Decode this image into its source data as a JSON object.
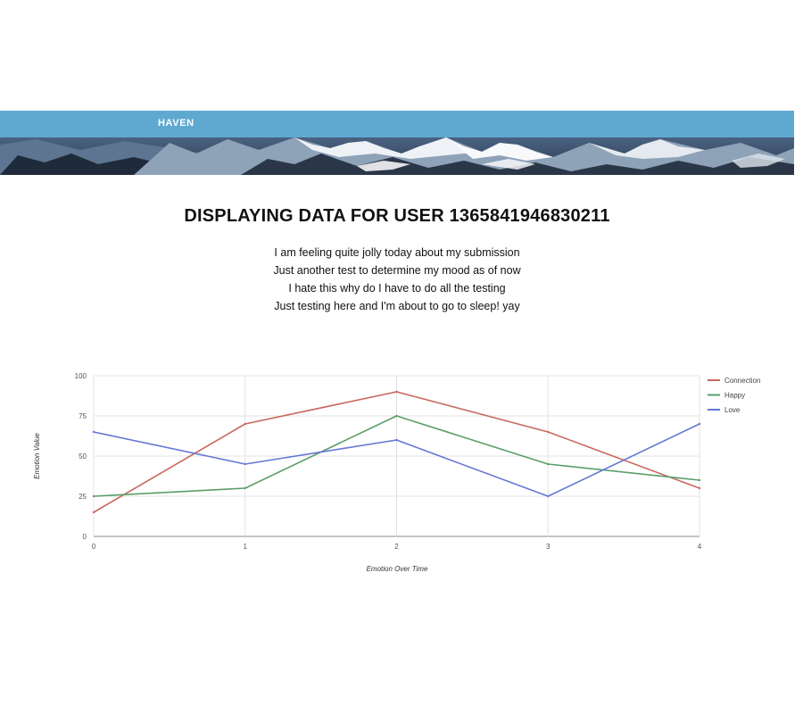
{
  "nav": {
    "brand": "HAVEN"
  },
  "main": {
    "title": "DISPLAYING DATA FOR USER 1365841946830211",
    "entries": [
      "I am feeling quite jolly today about my submission",
      "Just another test to determine my mood as of now",
      "I hate this why do I have to do all the testing",
      "Just testing here and I'm about to go to sleep! yay"
    ]
  },
  "colors": {
    "nav_bar": "#5fa9d1",
    "connection": "#c8685e",
    "happy": "#5b9e6a",
    "love": "#6677d6"
  },
  "chart_data": {
    "type": "line",
    "x": [
      0,
      1,
      2,
      3,
      4
    ],
    "xlabel": "Emotion Over Time",
    "ylabel": "Emotion Value",
    "ylim": [
      0,
      100
    ],
    "yticks": [
      0,
      25,
      50,
      75,
      100
    ],
    "xticks": [
      0,
      1,
      2,
      3,
      4
    ],
    "grid": true,
    "legend_position": "right",
    "series": [
      {
        "name": "Connection",
        "color": "#c8685e",
        "values": [
          15,
          70,
          90,
          65,
          30
        ]
      },
      {
        "name": "Happy",
        "color": "#5b9e6a",
        "values": [
          25,
          30,
          75,
          45,
          35
        ]
      },
      {
        "name": "Love",
        "color": "#6677d6",
        "values": [
          65,
          45,
          60,
          25,
          70
        ]
      }
    ]
  }
}
